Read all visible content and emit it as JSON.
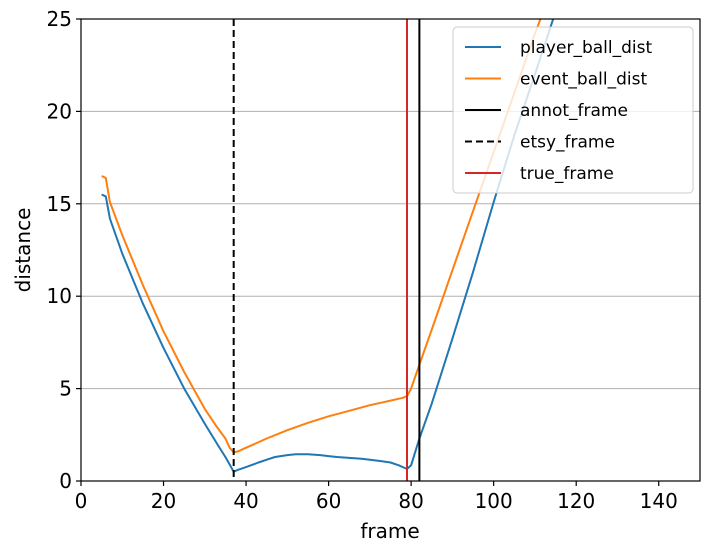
{
  "chart_data": {
    "type": "line",
    "title": "",
    "xlabel": "frame",
    "ylabel": "distance",
    "xlim": [
      0,
      150
    ],
    "ylim": [
      0,
      25
    ],
    "xticks": [
      0,
      20,
      40,
      60,
      80,
      100,
      120,
      140
    ],
    "yticks": [
      0,
      5,
      10,
      15,
      20,
      25
    ],
    "grid": "y-axis horizontal lines",
    "legend_position": "top-right",
    "series": [
      {
        "name": "player_ball_dist",
        "color": "#1f77b4",
        "x": [
          5,
          6,
          7,
          10,
          15,
          20,
          25,
          30,
          33,
          35,
          36,
          37,
          38,
          40,
          43,
          45,
          47,
          50,
          52,
          55,
          58,
          60,
          62,
          65,
          68,
          70,
          72,
          75,
          77,
          79,
          80,
          82,
          85,
          90,
          95,
          100,
          105,
          110,
          115,
          120
        ],
        "y": [
          15.5,
          15.4,
          14.2,
          12.3,
          9.6,
          7.2,
          5.0,
          3.1,
          2.0,
          1.3,
          0.9,
          0.5,
          0.6,
          0.75,
          1.0,
          1.15,
          1.3,
          1.4,
          1.45,
          1.45,
          1.4,
          1.35,
          1.3,
          1.25,
          1.2,
          1.15,
          1.1,
          1.0,
          0.85,
          0.65,
          0.85,
          2.3,
          4.2,
          7.7,
          11.3,
          15.1,
          18.7,
          22.0,
          25.4,
          25.4
        ]
      },
      {
        "name": "event_ball_dist",
        "color": "#ff7f0e",
        "x": [
          5,
          6,
          7,
          10,
          15,
          20,
          25,
          30,
          33,
          35,
          36,
          37,
          38,
          40,
          45,
          50,
          55,
          60,
          65,
          70,
          75,
          78,
          79,
          80,
          82,
          85,
          90,
          95,
          100,
          105,
          110,
          112
        ],
        "y": [
          16.5,
          16.4,
          15.1,
          13.3,
          10.6,
          8.1,
          5.9,
          3.9,
          2.9,
          2.3,
          1.8,
          1.55,
          1.6,
          1.8,
          2.3,
          2.75,
          3.15,
          3.5,
          3.8,
          4.1,
          4.35,
          4.5,
          4.6,
          5.0,
          6.3,
          8.2,
          11.4,
          14.6,
          17.8,
          21.0,
          24.2,
          25.4
        ]
      }
    ],
    "vlines": [
      {
        "name": "annot_frame",
        "x": 82,
        "color": "#000000",
        "style": "solid"
      },
      {
        "name": "etsy_frame",
        "x": 37,
        "color": "#000000",
        "style": "dashed"
      },
      {
        "name": "true_frame",
        "x": 79,
        "color": "#d62728",
        "style": "solid"
      }
    ],
    "legend": [
      {
        "label": "player_ball_dist",
        "color": "#1f77b4",
        "style": "solid"
      },
      {
        "label": "event_ball_dist",
        "color": "#ff7f0e",
        "style": "solid"
      },
      {
        "label": "annot_frame",
        "color": "#000000",
        "style": "solid"
      },
      {
        "label": "etsy_frame",
        "color": "#000000",
        "style": "dashed"
      },
      {
        "label": "true_frame",
        "color": "#d62728",
        "style": "solid"
      }
    ]
  }
}
